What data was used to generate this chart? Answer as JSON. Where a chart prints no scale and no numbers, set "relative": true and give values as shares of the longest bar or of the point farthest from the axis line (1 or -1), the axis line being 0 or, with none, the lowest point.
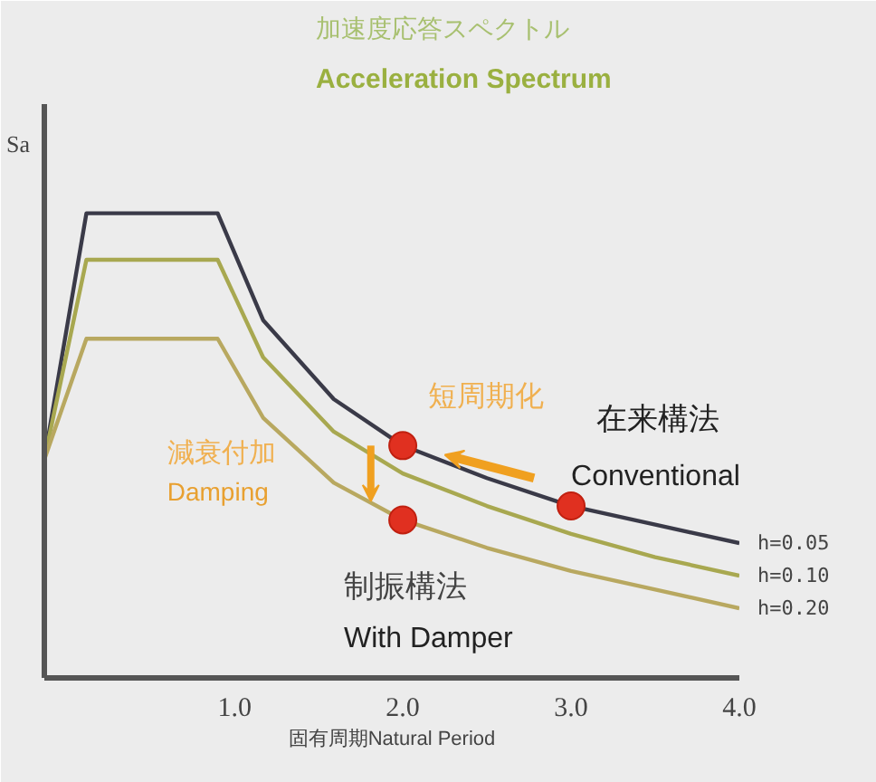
{
  "chart_data": {
    "type": "line",
    "title": "加速度応答スペクトル",
    "subtitle": "Acceleration Spectrum",
    "xlabel": "固有周期Natural Period",
    "ylabel": "Sa",
    "relative": true,
    "xlim": [
      -0.13,
      4.0
    ],
    "xticks": [
      {
        "value": 1,
        "label": "1.0"
      },
      {
        "value": 2,
        "label": "2.0"
      },
      {
        "value": 3,
        "label": "3.0"
      },
      {
        "value": 4,
        "label": "4.0"
      }
    ],
    "grid": false,
    "marker": "none",
    "line_style": "solid",
    "series": [
      {
        "name": "h=0.05",
        "color": "#3a3a48",
        "x": [
          -0.13,
          0.12,
          0.9,
          1.17,
          1.59,
          2.0,
          2.5,
          3.0,
          3.5,
          4.0
        ],
        "values": [
          0.47,
          1.0,
          1.0,
          0.77,
          0.6,
          0.5,
          0.43,
          0.37,
          0.33,
          0.29
        ]
      },
      {
        "name": "h=0.10",
        "color": "#a8a850",
        "x": [
          -0.13,
          0.12,
          0.9,
          1.17,
          1.59,
          2.0,
          2.5,
          3.0,
          3.5,
          4.0
        ],
        "values": [
          0.47,
          0.9,
          0.9,
          0.69,
          0.53,
          0.44,
          0.37,
          0.31,
          0.26,
          0.22
        ]
      },
      {
        "name": "h=0.20",
        "color": "#b8a860",
        "x": [
          -0.13,
          0.12,
          0.9,
          1.17,
          1.59,
          2.0,
          2.5,
          3.0,
          3.5,
          4.0
        ],
        "values": [
          0.47,
          0.73,
          0.73,
          0.56,
          0.42,
          0.34,
          0.28,
          0.23,
          0.19,
          0.15
        ]
      },
      {
        "type": "scatter",
        "marker": "circle",
        "color": "#e03020",
        "x": [
          2.0,
          3.0,
          2.0
        ],
        "values": [
          0.5,
          0.37,
          0.34
        ]
      }
    ],
    "annotations": [
      "短周期化",
      "減衰付加",
      "Damping",
      "在来構法",
      "Conventional",
      "制振構法",
      "With Damper"
    ]
  }
}
